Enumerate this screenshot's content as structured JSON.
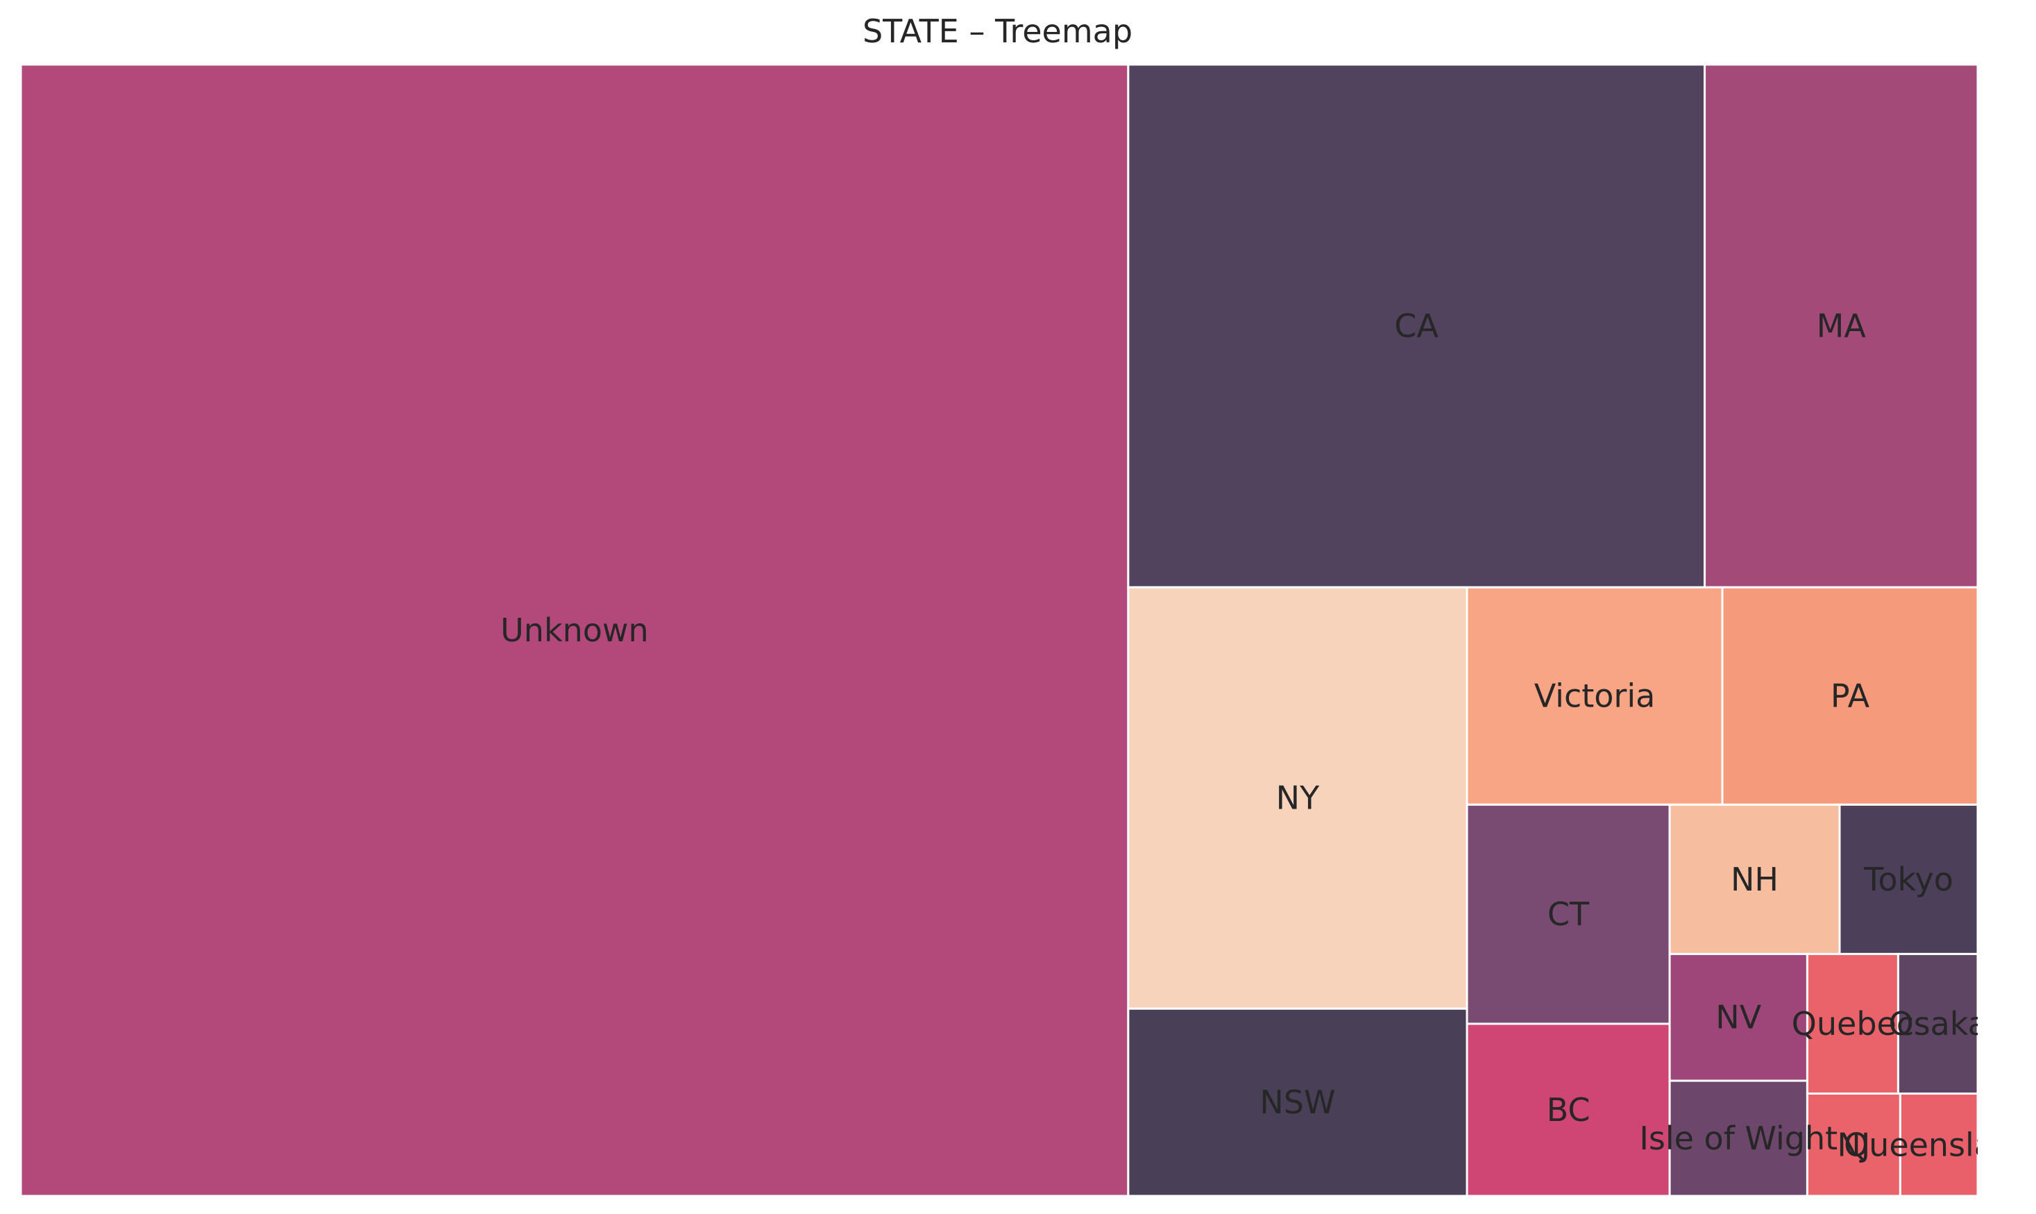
{
  "chart_data": {
    "type": "treemap",
    "title": "STATE – Treemap",
    "series": [
      {
        "label": "Unknown",
        "value": 79.0,
        "color": "#b2497a"
      },
      {
        "label": "CA",
        "value": 19.0,
        "color": "#51425d"
      },
      {
        "label": "MA",
        "value": 9.0,
        "color": "#a44a79"
      },
      {
        "label": "NY",
        "value": 9.0,
        "color": "#f7d3bb"
      },
      {
        "label": "NSW",
        "value": 4.0,
        "color": "#493f56"
      },
      {
        "label": "Victoria",
        "value": 3.5,
        "color": "#f7a584"
      },
      {
        "label": "PA",
        "value": 3.5,
        "color": "#f59a7a"
      },
      {
        "label": "CT",
        "value": 2.8,
        "color": "#7a4b72"
      },
      {
        "label": "BC",
        "value": 2.2,
        "color": "#cf4674"
      },
      {
        "label": "NH",
        "value": 1.6,
        "color": "#f6bd9f"
      },
      {
        "label": "Tokyo",
        "value": 1.3,
        "color": "#4b3f59"
      },
      {
        "label": "NV",
        "value": 1.1,
        "color": "#9e4579"
      },
      {
        "label": "Isle of Wight",
        "value": 1.0,
        "color": "#6d466b"
      },
      {
        "label": "Quebec",
        "value": 0.8,
        "color": "#ea636a"
      },
      {
        "label": "Osaka",
        "value": 0.7,
        "color": "#5e4564"
      },
      {
        "label": "NJ",
        "value": 0.6,
        "color": "#ea636a"
      },
      {
        "label": "Queensland",
        "value": 0.5,
        "color": "#e9606a"
      }
    ]
  }
}
